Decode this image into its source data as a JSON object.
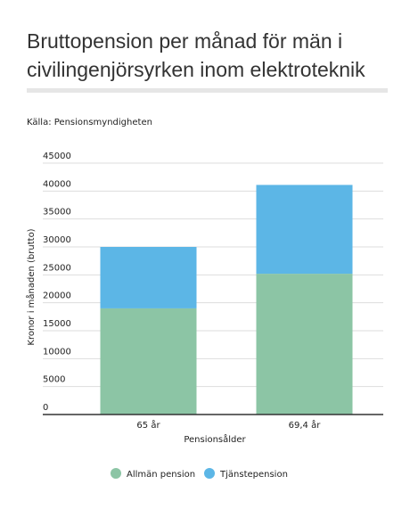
{
  "chart_data": {
    "type": "stacked_bar",
    "title": [
      "Bruttopension per månad för män i",
      "civilingenjörsyrken inom elektroteknik"
    ],
    "source": "Källa: Pensionsmyndigheten",
    "categories": [
      "65 år",
      "69,4 år"
    ],
    "series": [
      {
        "name": "Allmän pension",
        "color": "#8cc5a5",
        "values": [
          19000,
          25200
        ]
      },
      {
        "name": "Tjänstepension",
        "color": "#5cb6e6",
        "values": [
          11000,
          15900
        ]
      }
    ],
    "ylim": [
      0,
      45000
    ],
    "yticks": [
      0,
      5000,
      10000,
      15000,
      20000,
      25000,
      30000,
      35000,
      40000,
      45000
    ],
    "ylabel": "Kronor i månaden (brutto)",
    "xlabel": "Pensionsålder",
    "grid": true,
    "legend": "bottom"
  }
}
